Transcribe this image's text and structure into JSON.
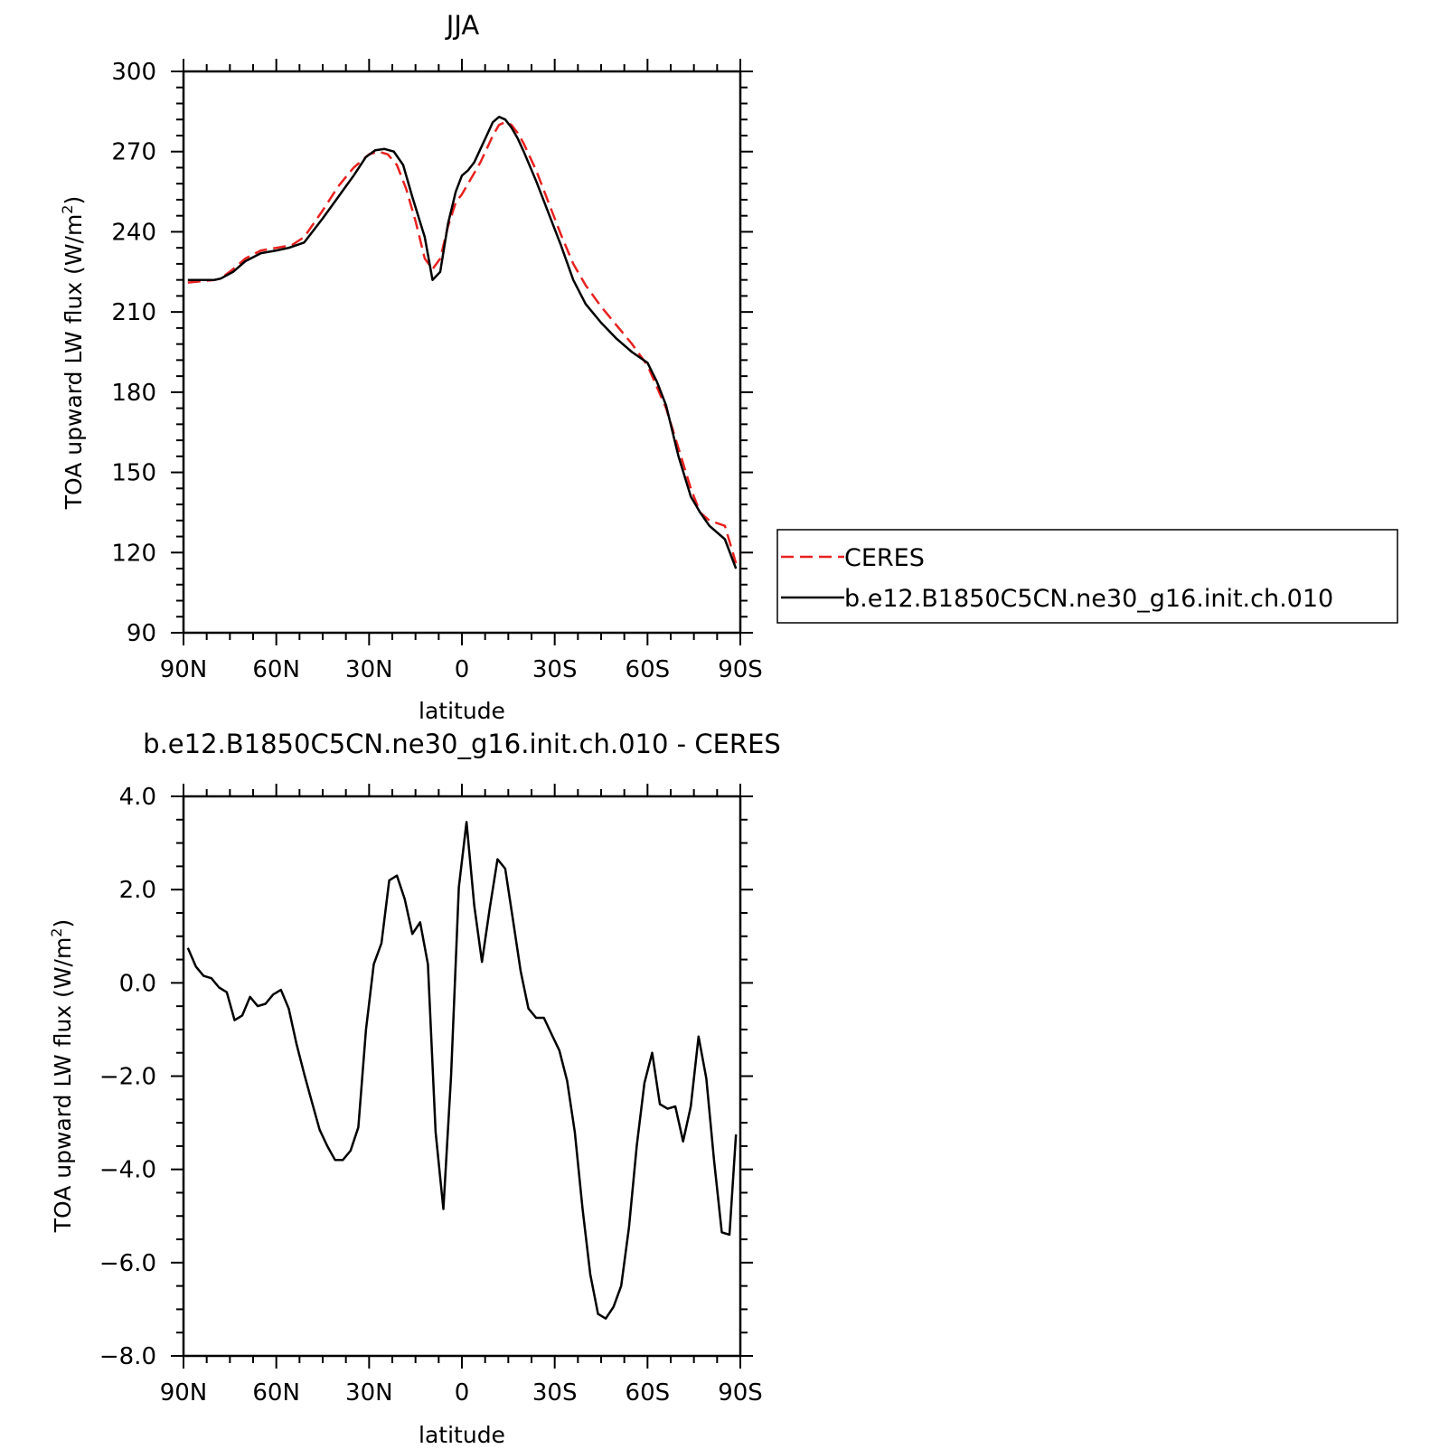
{
  "chart_data": [
    {
      "type": "line",
      "title": "JJA",
      "xlabel": "latitude",
      "ylabel": "TOA upward LW flux (W/m",
      "ylabel_sup": "2",
      "ylabel_close": ")",
      "xlim": [
        90,
        -90
      ],
      "ylim": [
        90,
        300
      ],
      "x_ticks": [
        90,
        60,
        30,
        0,
        -30,
        -60,
        -90
      ],
      "x_tick_labels": [
        "90N",
        "60N",
        "30N",
        "0",
        "30S",
        "60S",
        "90S"
      ],
      "y_ticks": [
        90,
        120,
        150,
        180,
        210,
        240,
        270,
        300
      ],
      "y_tick_labels": [
        "90",
        "120",
        "150",
        "180",
        "210",
        "240",
        "270",
        "300"
      ],
      "grid": false,
      "legend_position": "right",
      "series": [
        {
          "name": "CERES",
          "color": "#e8211f",
          "dash": "dashed",
          "x": [
            88.6,
            80,
            78,
            74,
            70,
            65,
            60,
            55,
            51,
            45,
            40,
            35,
            30,
            27,
            24,
            21,
            18,
            15,
            12,
            9.5,
            7,
            4.5,
            2,
            0,
            -2,
            -4,
            -6,
            -8,
            -10,
            -12,
            -14,
            -16,
            -18,
            -20,
            -24,
            -28,
            -32,
            -36,
            -40,
            -45,
            -50,
            -55,
            -60,
            -63,
            -66,
            -70,
            -74,
            -77,
            -80,
            -85,
            -88.6
          ],
          "y": [
            221,
            222,
            222.5,
            226,
            230,
            233,
            234,
            235,
            238,
            248,
            257,
            264,
            269,
            270,
            269,
            265,
            256,
            244,
            230,
            226,
            230,
            242,
            251,
            254,
            258,
            262,
            266,
            271,
            276,
            280,
            281,
            280,
            277,
            273,
            263,
            251,
            239,
            228,
            220,
            212,
            205,
            198,
            190,
            182,
            174,
            159,
            144,
            135,
            132,
            130,
            116
          ]
        },
        {
          "name": "b.e12.B1850C5CN.ne30_g16.init.ch.010",
          "color": "#000000",
          "dash": "solid",
          "x": [
            88.6,
            80,
            78,
            74,
            70,
            65,
            60,
            56,
            51,
            45,
            40,
            35,
            31,
            28,
            25,
            22,
            19,
            16,
            12,
            9.5,
            7,
            4.5,
            2,
            0,
            -2,
            -4,
            -6,
            -8,
            -10,
            -12,
            -14,
            -16,
            -18,
            -20,
            -24,
            -28,
            -32,
            -36,
            -40,
            -45,
            -50,
            -55,
            -60,
            -63,
            -66,
            -70,
            -74,
            -77,
            -80,
            -85,
            -88.6
          ],
          "y": [
            222,
            222,
            222.5,
            225,
            229,
            232,
            233,
            234,
            236,
            245,
            253,
            261,
            268,
            270.5,
            271,
            270,
            265,
            253,
            238,
            222,
            225,
            243,
            255,
            261,
            263,
            266,
            271,
            276,
            281,
            283,
            282,
            279,
            275,
            270,
            259,
            247,
            235,
            222,
            213,
            206,
            200,
            195,
            191,
            184,
            175,
            156,
            141,
            135,
            130,
            125,
            114
          ]
        }
      ]
    },
    {
      "type": "line",
      "title": "b.e12.B1850C5CN.ne30_g16.init.ch.010 - CERES",
      "xlabel": "latitude",
      "ylabel": "TOA upward LW flux (W/m",
      "ylabel_sup": "2",
      "ylabel_close": ")",
      "xlim": [
        90,
        -90
      ],
      "ylim": [
        -8,
        4
      ],
      "x_ticks": [
        90,
        60,
        30,
        0,
        -30,
        -60,
        -90
      ],
      "x_tick_labels": [
        "90N",
        "60N",
        "30N",
        "0",
        "30S",
        "60S",
        "90S"
      ],
      "y_ticks": [
        4,
        2,
        0,
        -2,
        -4,
        -6,
        -8
      ],
      "y_tick_labels": [
        "4.0",
        "2.0",
        "0.0",
        "−2.0",
        "−4.0",
        "−6.0",
        "−8.0"
      ],
      "grid": false,
      "series": [
        {
          "name": "",
          "color": "#000000",
          "dash": "solid",
          "x": [
            88.6,
            86,
            83.5,
            81,
            78.5,
            76,
            73.5,
            71,
            68.5,
            66,
            63.5,
            61,
            58.5,
            56,
            53.5,
            51,
            48.5,
            46,
            43.5,
            41,
            38.5,
            36,
            33.5,
            31,
            28.5,
            26,
            23.5,
            21,
            18.5,
            16,
            13.5,
            11,
            8.5,
            6,
            3.5,
            1,
            -1.5,
            -4,
            -6.5,
            -9,
            -11.5,
            -14,
            -16.5,
            -19,
            -21.5,
            -24,
            -26.5,
            -29,
            -31.5,
            -34,
            -36.5,
            -39,
            -41.5,
            -44,
            -46.5,
            -49,
            -51.5,
            -54,
            -56.5,
            -59,
            -61.5,
            -64,
            -66.5,
            -69,
            -71.5,
            -74,
            -76.5,
            -79,
            -81.5,
            -84,
            -86.5,
            -88.6
          ],
          "y": [
            0.75,
            0.35,
            0.15,
            0.1,
            -0.1,
            -0.2,
            -0.8,
            -0.7,
            -0.3,
            -0.5,
            -0.45,
            -0.25,
            -0.15,
            -0.55,
            -1.3,
            -1.95,
            -2.55,
            -3.15,
            -3.5,
            -3.8,
            -3.8,
            -3.6,
            -3.1,
            -1.0,
            0.4,
            0.85,
            2.2,
            2.3,
            1.8,
            1.05,
            1.3,
            0.4,
            -3.2,
            -4.85,
            -2.0,
            2.05,
            3.45,
            1.65,
            0.45,
            1.6,
            2.65,
            2.45,
            1.35,
            0.25,
            -0.55,
            -0.75,
            -0.75,
            -1.1,
            -1.45,
            -2.1,
            -3.2,
            -4.85,
            -6.25,
            -7.1,
            -7.2,
            -6.95,
            -6.5,
            -5.25,
            -3.5,
            -2.15,
            -1.5,
            -2.6,
            -2.7,
            -2.65,
            -3.4,
            -2.65,
            -1.15,
            -2.05,
            -3.8,
            -5.35,
            -5.4,
            -3.25
          ]
        }
      ]
    }
  ]
}
